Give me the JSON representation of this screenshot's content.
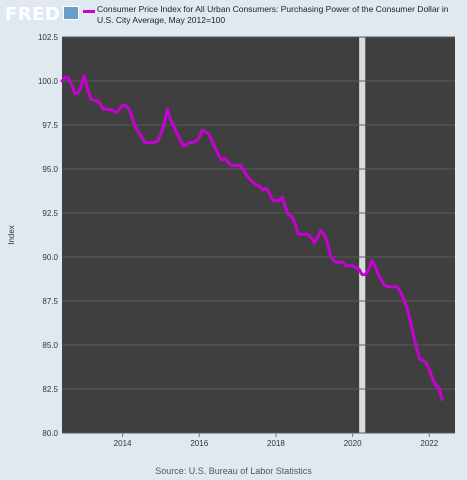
{
  "header": {
    "logo_text": "FRED",
    "logo_icon": "fred-chart-icon",
    "legend_label": "Consumer Price Index for All Urban Consumers: Purchasing Power of the Consumer Dollar in U.S. City Average, May 2012=100"
  },
  "footer": {
    "source": "Source: U.S. Bureau of Labor Statistics"
  },
  "colors": {
    "series": "#c800d4",
    "plot_bg": "#3f3f3f",
    "page_bg": "#e1e9f0",
    "recession": "#d8dcdf"
  },
  "chart_data": {
    "type": "line",
    "xlabel": "",
    "ylabel": "Index",
    "ylim": [
      80.0,
      102.5
    ],
    "xlim": [
      2012.42,
      2022.67
    ],
    "yticks": [
      "80.0",
      "82.5",
      "85.0",
      "87.5",
      "90.0",
      "92.5",
      "95.0",
      "97.5",
      "100.0",
      "102.5"
    ],
    "xticks": [
      "2014",
      "2016",
      "2018",
      "2020",
      "2022"
    ],
    "grid": true,
    "legend_position": "top",
    "recessions": [
      [
        2020.17,
        2020.33
      ]
    ],
    "series": [
      {
        "name": "Consumer Price Index for All Urban Consumers: Purchasing Power of the Consumer Dollar in U.S. City Average, May 2012=100",
        "points": [
          [
            2012.42,
            100.0
          ],
          [
            2012.5,
            100.2
          ],
          [
            2012.58,
            100.2
          ],
          [
            2012.67,
            99.8
          ],
          [
            2012.75,
            99.3
          ],
          [
            2012.83,
            99.3
          ],
          [
            2012.92,
            99.7
          ],
          [
            2013.0,
            100.3
          ],
          [
            2013.08,
            99.6
          ],
          [
            2013.17,
            99.0
          ],
          [
            2013.25,
            98.9
          ],
          [
            2013.33,
            98.9
          ],
          [
            2013.42,
            98.7
          ],
          [
            2013.5,
            98.4
          ],
          [
            2013.58,
            98.4
          ],
          [
            2013.67,
            98.4
          ],
          [
            2013.75,
            98.3
          ],
          [
            2013.83,
            98.2
          ],
          [
            2013.92,
            98.4
          ],
          [
            2014.0,
            98.6
          ],
          [
            2014.08,
            98.6
          ],
          [
            2014.17,
            98.4
          ],
          [
            2014.25,
            97.9
          ],
          [
            2014.33,
            97.4
          ],
          [
            2014.42,
            97.1
          ],
          [
            2014.5,
            96.8
          ],
          [
            2014.58,
            96.5
          ],
          [
            2014.67,
            96.5
          ],
          [
            2014.75,
            96.5
          ],
          [
            2014.83,
            96.5
          ],
          [
            2014.92,
            96.6
          ],
          [
            2015.0,
            97.0
          ],
          [
            2015.08,
            97.5
          ],
          [
            2015.17,
            98.4
          ],
          [
            2015.25,
            97.8
          ],
          [
            2015.33,
            97.5
          ],
          [
            2015.42,
            97.0
          ],
          [
            2015.5,
            96.7
          ],
          [
            2015.58,
            96.3
          ],
          [
            2015.67,
            96.4
          ],
          [
            2015.75,
            96.5
          ],
          [
            2015.83,
            96.5
          ],
          [
            2015.92,
            96.6
          ],
          [
            2016.0,
            96.8
          ],
          [
            2016.08,
            97.2
          ],
          [
            2016.17,
            97.1
          ],
          [
            2016.25,
            97.0
          ],
          [
            2016.33,
            96.6
          ],
          [
            2016.42,
            96.2
          ],
          [
            2016.5,
            95.8
          ],
          [
            2016.58,
            95.5
          ],
          [
            2016.67,
            95.6
          ],
          [
            2016.75,
            95.4
          ],
          [
            2016.83,
            95.2
          ],
          [
            2016.92,
            95.2
          ],
          [
            2017.0,
            95.2
          ],
          [
            2017.08,
            95.2
          ],
          [
            2017.17,
            94.9
          ],
          [
            2017.25,
            94.6
          ],
          [
            2017.33,
            94.4
          ],
          [
            2017.42,
            94.2
          ],
          [
            2017.5,
            94.1
          ],
          [
            2017.58,
            94.0
          ],
          [
            2017.67,
            93.8
          ],
          [
            2017.75,
            93.9
          ],
          [
            2017.83,
            93.6
          ],
          [
            2017.92,
            93.2
          ],
          [
            2018.0,
            93.2
          ],
          [
            2018.08,
            93.2
          ],
          [
            2018.17,
            93.4
          ],
          [
            2018.25,
            92.8
          ],
          [
            2018.33,
            92.4
          ],
          [
            2018.42,
            92.3
          ],
          [
            2018.5,
            91.9
          ],
          [
            2018.58,
            91.3
          ],
          [
            2018.67,
            91.3
          ],
          [
            2018.75,
            91.3
          ],
          [
            2018.83,
            91.3
          ],
          [
            2018.92,
            91.1
          ],
          [
            2019.0,
            90.8
          ],
          [
            2019.08,
            91.1
          ],
          [
            2019.17,
            91.5
          ],
          [
            2019.25,
            91.3
          ],
          [
            2019.33,
            90.9
          ],
          [
            2019.42,
            90.1
          ],
          [
            2019.5,
            89.8
          ],
          [
            2019.58,
            89.7
          ],
          [
            2019.67,
            89.7
          ],
          [
            2019.75,
            89.7
          ],
          [
            2019.83,
            89.5
          ],
          [
            2019.92,
            89.5
          ],
          [
            2020.0,
            89.5
          ],
          [
            2020.08,
            89.4
          ],
          [
            2020.17,
            89.3
          ],
          [
            2020.25,
            89.0
          ],
          [
            2020.33,
            89.0
          ],
          [
            2020.42,
            89.3
          ],
          [
            2020.5,
            89.8
          ],
          [
            2020.58,
            89.5
          ],
          [
            2020.67,
            89.0
          ],
          [
            2020.75,
            88.7
          ],
          [
            2020.83,
            88.4
          ],
          [
            2020.92,
            88.3
          ],
          [
            2021.0,
            88.3
          ],
          [
            2021.08,
            88.3
          ],
          [
            2021.17,
            88.3
          ],
          [
            2021.25,
            88.0
          ],
          [
            2021.33,
            87.6
          ],
          [
            2021.42,
            87.1
          ],
          [
            2021.5,
            86.4
          ],
          [
            2021.58,
            85.6
          ],
          [
            2021.67,
            84.8
          ],
          [
            2021.75,
            84.2
          ],
          [
            2021.83,
            84.1
          ],
          [
            2021.92,
            84.0
          ],
          [
            2022.0,
            83.6
          ],
          [
            2022.08,
            83.1
          ],
          [
            2022.17,
            82.7
          ],
          [
            2022.25,
            82.6
          ],
          [
            2022.33,
            81.9
          ]
        ]
      }
    ]
  }
}
